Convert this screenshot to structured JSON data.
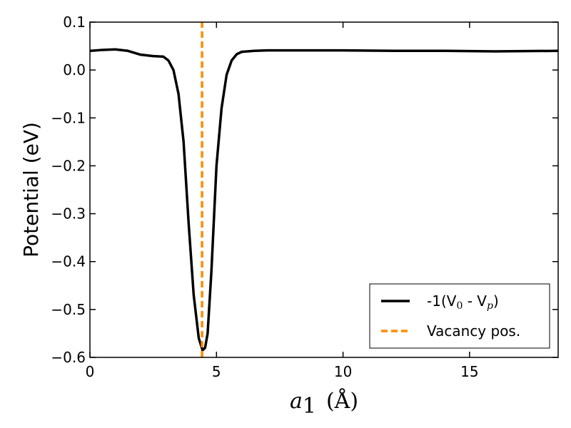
{
  "chart_data": {
    "type": "line",
    "xlabel_var": "a",
    "xlabel_sub": "1",
    "xlabel_unit": "(Å)",
    "ylabel": "Potential (eV)",
    "xlim": [
      0,
      18.5
    ],
    "ylim": [
      -0.6,
      0.1
    ],
    "xticks": [
      0,
      5,
      10,
      15
    ],
    "xtick_labels": [
      "0",
      "5",
      "10",
      "15"
    ],
    "yticks": [
      0.1,
      0.0,
      -0.1,
      -0.2,
      -0.3,
      -0.4,
      -0.5,
      -0.6
    ],
    "ytick_labels": [
      "0.1",
      "0.0",
      "−0.1",
      "−0.2",
      "−0.3",
      "−0.4",
      "−0.5",
      "−0.6"
    ],
    "grid": false,
    "legend_position": "lower-right",
    "series": [
      {
        "name": "-1(V",
        "name_sub0": "0",
        "name_mid": " - V",
        "name_subp": "p",
        "name_end": ")",
        "color": "#000000",
        "style": "solid",
        "x": [
          0,
          0.5,
          1.0,
          1.5,
          2.0,
          2.5,
          2.9,
          3.1,
          3.3,
          3.5,
          3.7,
          3.9,
          4.1,
          4.3,
          4.45,
          4.55,
          4.65,
          4.8,
          5.0,
          5.2,
          5.4,
          5.6,
          5.8,
          6.0,
          6.5,
          7.0,
          8.0,
          10.0,
          12.0,
          14.0,
          16.0,
          18.5
        ],
        "y": [
          0.04,
          0.042,
          0.043,
          0.04,
          0.032,
          0.029,
          0.028,
          0.02,
          0.0,
          -0.05,
          -0.15,
          -0.32,
          -0.47,
          -0.56,
          -0.585,
          -0.58,
          -0.55,
          -0.42,
          -0.2,
          -0.08,
          -0.01,
          0.02,
          0.033,
          0.038,
          0.04,
          0.041,
          0.041,
          0.041,
          0.04,
          0.04,
          0.039,
          0.04
        ]
      },
      {
        "name": "Vacancy pos.",
        "color": "#ff8c00",
        "style": "dashed",
        "x": [
          4.43,
          4.43
        ],
        "y": [
          -0.6,
          0.1
        ]
      }
    ]
  }
}
